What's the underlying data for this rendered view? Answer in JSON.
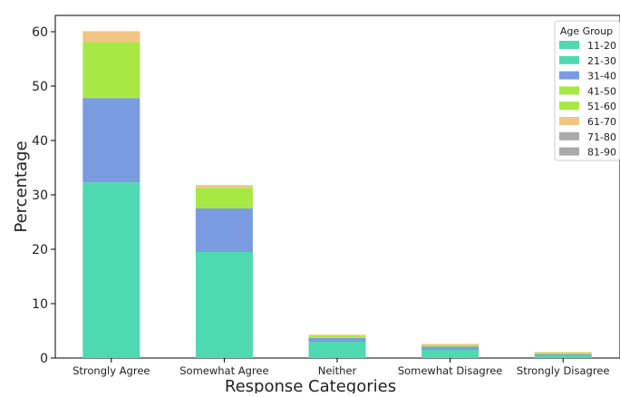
{
  "chart_data": {
    "type": "bar",
    "stacked": true,
    "xlabel": "Response Categories",
    "ylabel": "Percentage",
    "ylim": [
      0,
      63
    ],
    "yticks": [
      0,
      10,
      20,
      30,
      40,
      50,
      60
    ],
    "grid": false,
    "categories": [
      "Strongly Agree",
      "Somewhat Agree",
      "Neither",
      "Somewhat Disagree",
      "Strongly Disagree"
    ],
    "legend": {
      "title": "Age Group",
      "placement": "top-right"
    },
    "series": [
      {
        "name": "11-20",
        "color": "#4fd9b0",
        "values": [
          0,
          0,
          0,
          0,
          0
        ]
      },
      {
        "name": "21-30",
        "color": "#4fd9b0",
        "values": [
          32.3,
          19.5,
          3.0,
          1.5,
          0.5
        ]
      },
      {
        "name": "31-40",
        "color": "#7b9be0",
        "values": [
          15.5,
          8.0,
          0.7,
          0.6,
          0.2
        ]
      },
      {
        "name": "41-50",
        "color": "#a8e845",
        "values": [
          0,
          0,
          0,
          0,
          0
        ]
      },
      {
        "name": "51-60",
        "color": "#a8e845",
        "values": [
          10.3,
          3.8,
          0.4,
          0.3,
          0.3
        ]
      },
      {
        "name": "61-70",
        "color": "#f2c585",
        "values": [
          2.0,
          0.5,
          0.2,
          0.2,
          0.1
        ]
      },
      {
        "name": "71-80",
        "color": "#aaaaaa",
        "values": [
          0,
          0,
          0,
          0,
          0
        ]
      },
      {
        "name": "81-90",
        "color": "#aaaaaa",
        "values": [
          0,
          0,
          0,
          0,
          0
        ]
      }
    ]
  }
}
